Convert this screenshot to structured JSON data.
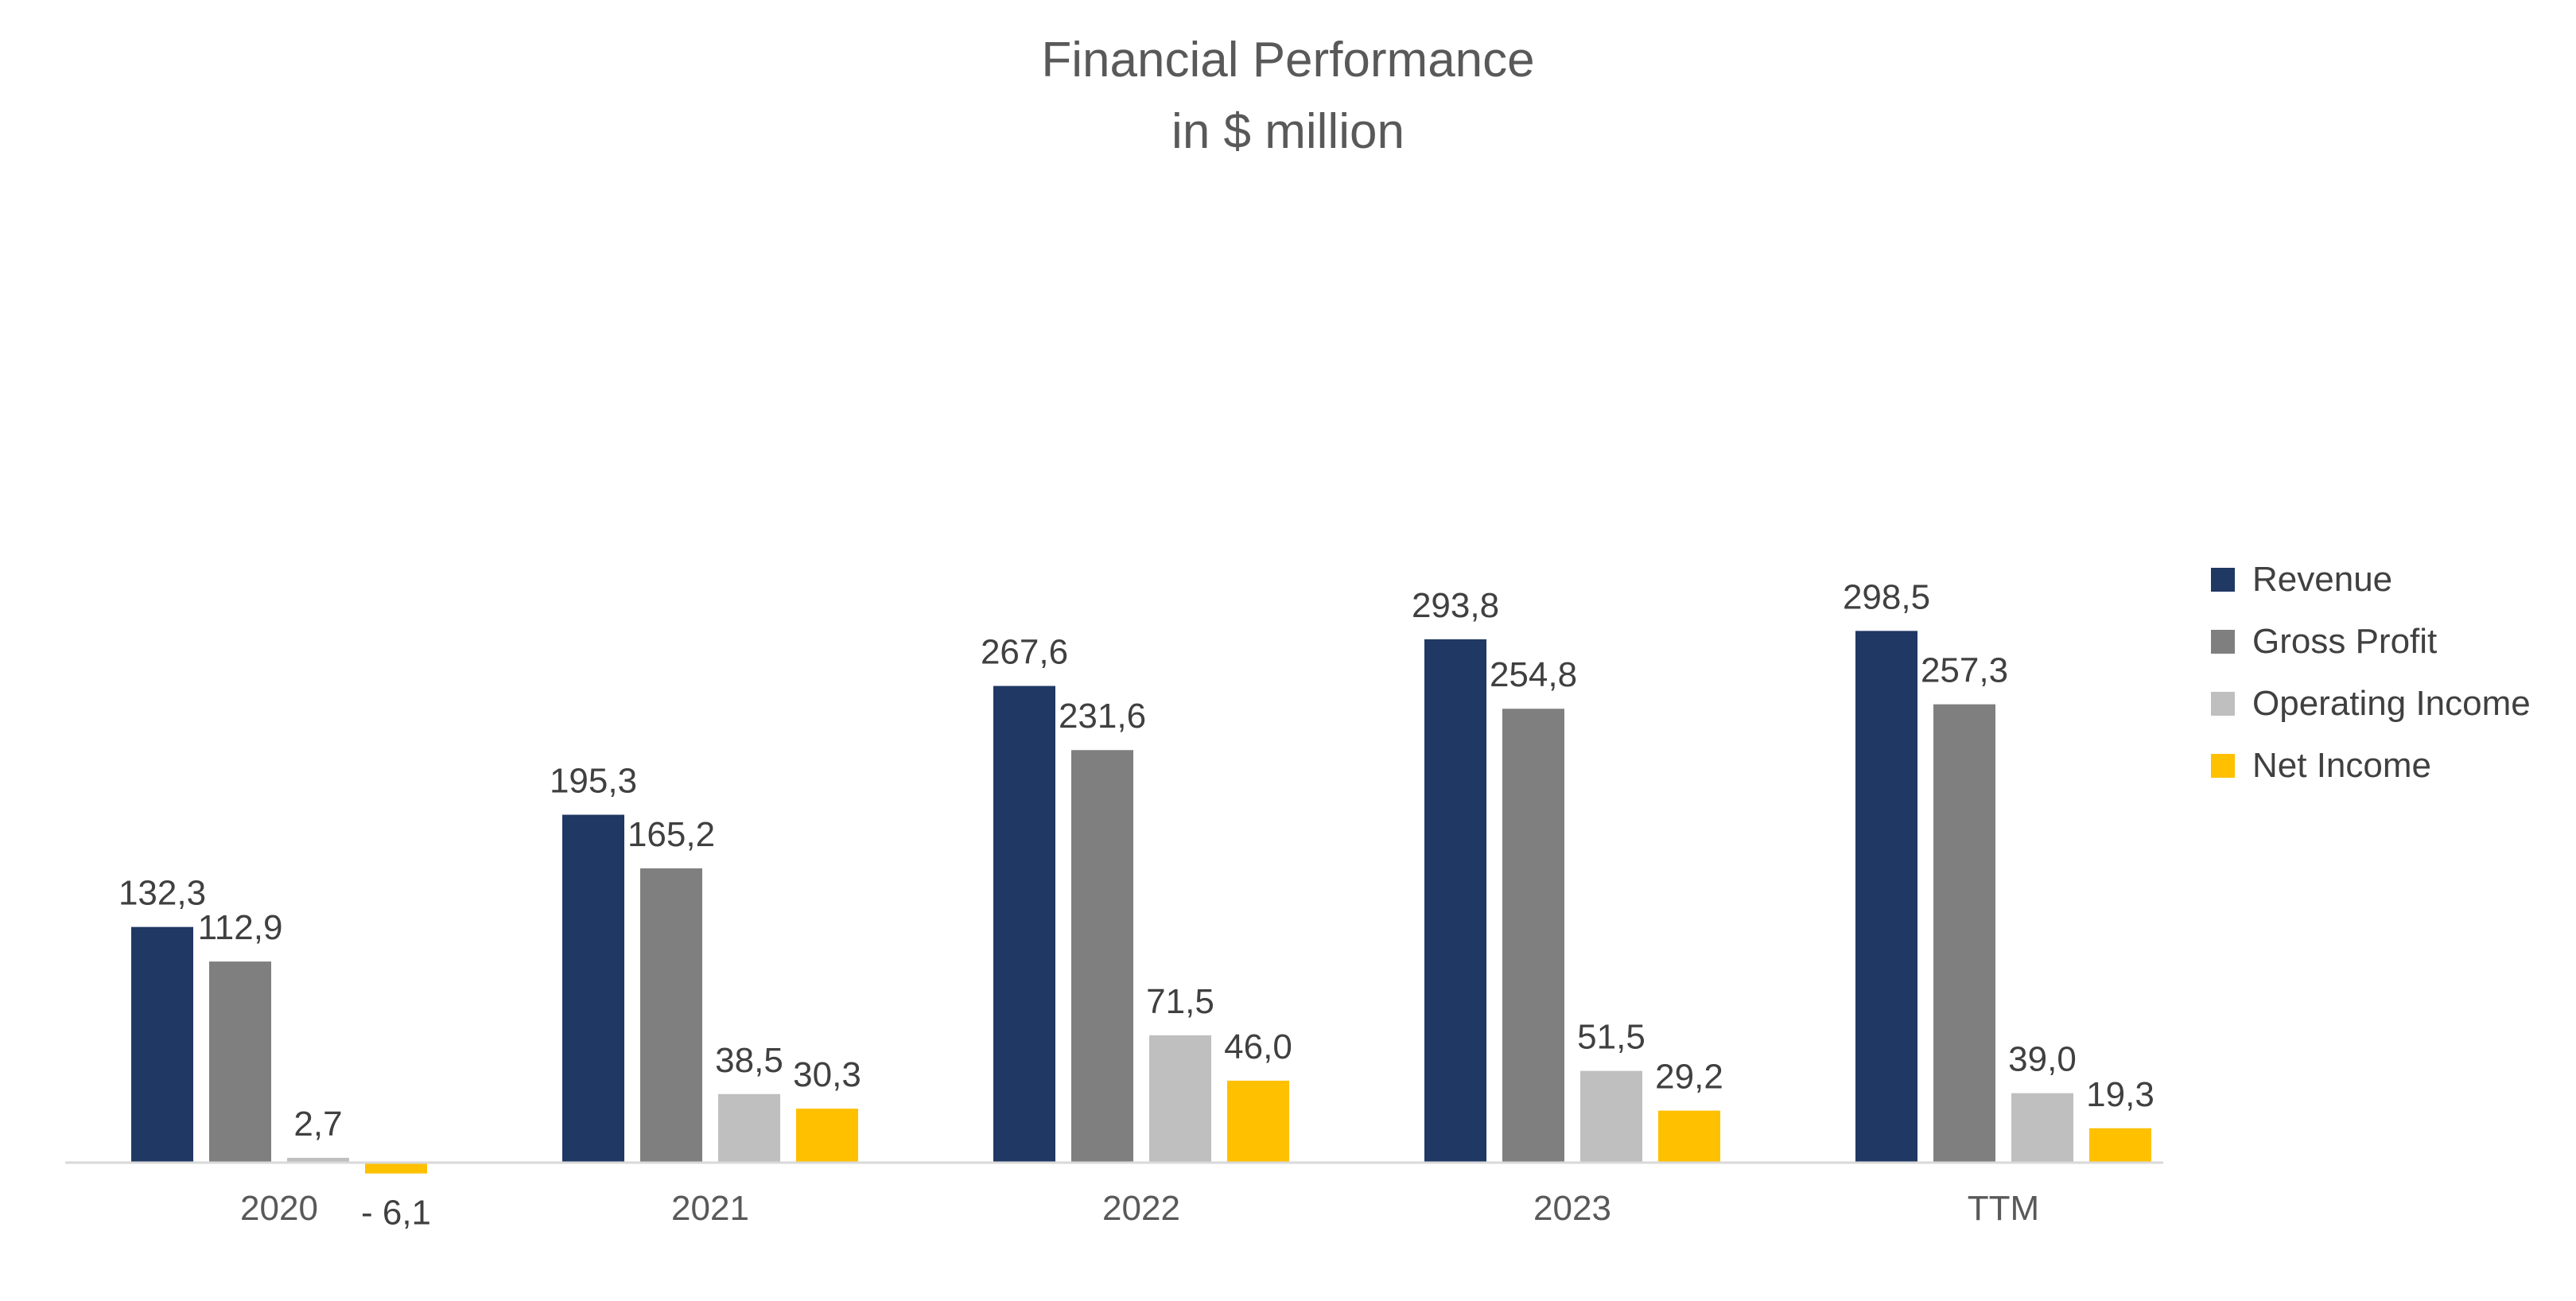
{
  "chart_data": {
    "type": "bar",
    "title": "Financial Performance",
    "subtitle": "in $ million",
    "xlabel": "",
    "ylabel": "",
    "categories": [
      "2020",
      "2021",
      "2022",
      "2023",
      "TTM"
    ],
    "series": [
      {
        "name": "Revenue",
        "color": "#203864",
        "values": [
          132.3,
          195.3,
          267.6,
          293.8,
          298.5
        ],
        "labels": [
          "132,3",
          "195,3",
          "267,6",
          "293,8",
          "298,5"
        ]
      },
      {
        "name": "Gross Profit",
        "color": "#7f7f7f",
        "values": [
          112.9,
          165.2,
          231.6,
          254.8,
          257.3
        ],
        "labels": [
          "112,9",
          "165,2",
          "231,6",
          "254,8",
          "257,3"
        ]
      },
      {
        "name": "Operating Income",
        "color": "#bfbfbf",
        "values": [
          2.7,
          38.5,
          71.5,
          51.5,
          39.0
        ],
        "labels": [
          "2,7",
          "38,5",
          "71,5",
          "51,5",
          "39,0"
        ]
      },
      {
        "name": "Net Income",
        "color": "#ffc000",
        "values": [
          -6.1,
          30.3,
          46.0,
          29.2,
          19.3
        ],
        "labels": [
          "- 6,1",
          "30,3",
          "46,0",
          "29,2",
          "19,3"
        ]
      }
    ],
    "grid": false,
    "legend": "right"
  }
}
